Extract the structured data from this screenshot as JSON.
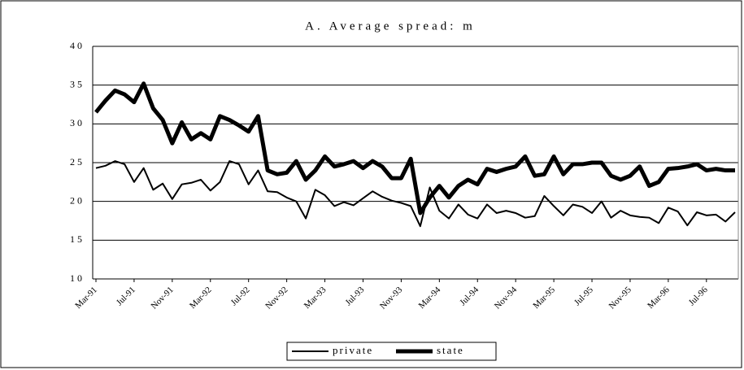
{
  "chart_data": {
    "type": "line",
    "title": "A. Average spread: m",
    "categories": [
      "Mar-91",
      null,
      null,
      null,
      "Jul-91",
      null,
      null,
      null,
      "Nov-91",
      null,
      null,
      null,
      "Mar-92",
      null,
      null,
      null,
      "Jul-92",
      null,
      null,
      null,
      "Nov-92",
      null,
      null,
      null,
      "Mar-93",
      null,
      null,
      null,
      "Jul-93",
      null,
      null,
      null,
      "Nov-93",
      null,
      null,
      null,
      "Mar-94",
      null,
      null,
      null,
      "Jul-94",
      null,
      null,
      null,
      "Nov-94",
      null,
      null,
      null,
      "Mar-95",
      null,
      null,
      null,
      "Jul-95",
      null,
      null,
      null,
      "Nov-95",
      null,
      null,
      null,
      "Mar-96",
      null,
      null,
      null,
      "Jul-96",
      null,
      null,
      null
    ],
    "series": [
      {
        "name": "private",
        "color": "#000000",
        "width": 2,
        "values": [
          24.3,
          24.6,
          25.2,
          24.8,
          22.5,
          24.3,
          21.5,
          22.3,
          20.3,
          22.2,
          22.4,
          22.8,
          21.4,
          22.5,
          25.2,
          24.8,
          22.2,
          24,
          21.3,
          21.2,
          20.5,
          20,
          17.8,
          21.5,
          20.8,
          19.4,
          19.9,
          19.5,
          20.4,
          21.3,
          20.6,
          20.1,
          19.8,
          19.4,
          16.8,
          21.8,
          18.8,
          17.8,
          19.6,
          18.3,
          17.8,
          19.6,
          18.5,
          18.8,
          18.5,
          17.9,
          18.1,
          20.7,
          19.4,
          18.2,
          19.6,
          19.3,
          18.5,
          20,
          17.9,
          18.8,
          18.2,
          18,
          17.9,
          17.2,
          19.2,
          18.7,
          16.9,
          18.6,
          18.2,
          18.3,
          17.4,
          18.6
        ]
      },
      {
        "name": "state",
        "color": "#000000",
        "width": 5,
        "values": [
          31.5,
          33,
          34.3,
          33.8,
          32.8,
          35.2,
          32,
          30.5,
          27.5,
          30.2,
          28,
          28.8,
          28,
          31,
          30.5,
          29.8,
          29,
          31,
          24,
          23.5,
          23.7,
          25.2,
          22.8,
          24,
          25.8,
          24.5,
          24.8,
          25.2,
          24.3,
          25.2,
          24.5,
          23,
          23,
          25.5,
          18.5,
          20.5,
          22,
          20.5,
          22,
          22.8,
          22.2,
          24.2,
          23.8,
          24.2,
          24.5,
          25.8,
          23.3,
          23.5,
          25.8,
          23.5,
          24.8,
          24.8,
          25,
          25,
          23.3,
          22.8,
          23.3,
          24.5,
          22,
          22.5,
          24.2,
          24.3,
          24.5,
          24.8,
          24,
          24.2,
          24,
          24
        ]
      }
    ],
    "ylim": [
      10,
      40
    ],
    "yticks": [
      10,
      15,
      20,
      25,
      30,
      35,
      40
    ],
    "grid": true,
    "legend": "bottom"
  }
}
